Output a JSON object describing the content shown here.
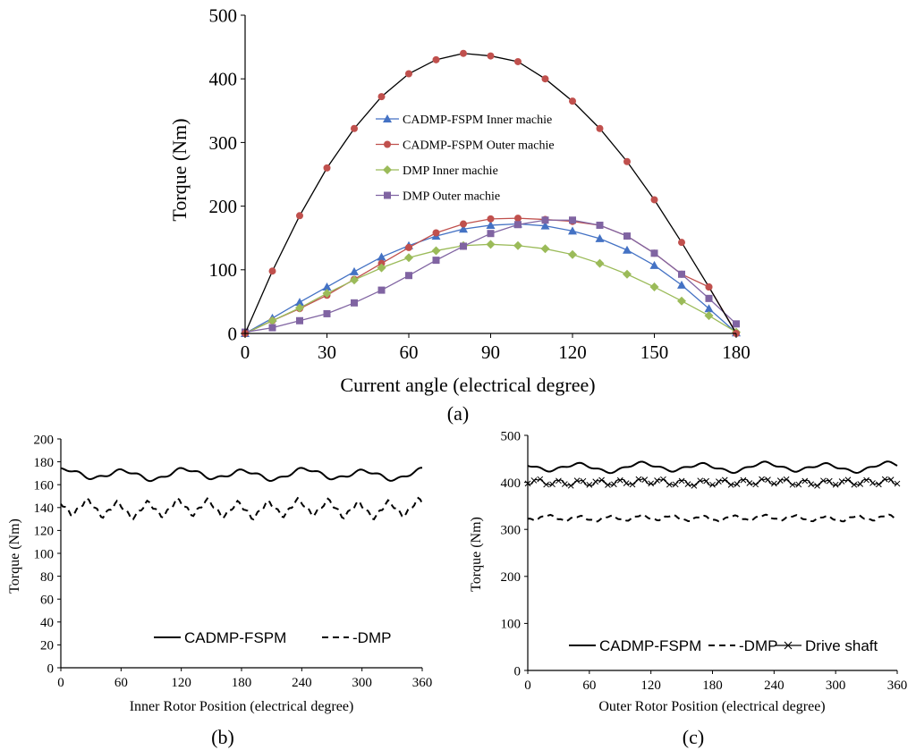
{
  "colors": {
    "axis": "#000000",
    "blue": "#4472C4",
    "red": "#C0504D",
    "green": "#9BBB59",
    "purple": "#8064A2"
  },
  "panels": {
    "a": "(a)",
    "b": "(b)",
    "c": "(c)"
  },
  "chart_data": [
    {
      "type": "line",
      "title": "",
      "xlabel": "Current angle (electrical degree)",
      "ylabel": "Torque (Nm)",
      "xlim": [
        0,
        180
      ],
      "ylim": [
        0,
        500
      ],
      "xticks": [
        0,
        30,
        60,
        90,
        120,
        150,
        180
      ],
      "yticks": [
        0,
        100,
        200,
        300,
        400,
        500
      ],
      "legend_position": "center",
      "x": [
        0,
        10,
        20,
        30,
        40,
        50,
        60,
        70,
        80,
        90,
        100,
        110,
        120,
        130,
        140,
        150,
        160,
        170,
        180
      ],
      "series": [
        {
          "name": "CADMP-FSPM Inner machie",
          "marker": "triangle",
          "color": "#4472C4",
          "values": [
            0,
            24,
            49,
            73,
            97,
            120,
            138,
            153,
            164,
            170,
            172,
            169,
            161,
            149,
            131,
            107,
            76,
            39,
            1
          ]
        },
        {
          "name": "CADMP-FSPM Outer machie",
          "marker": "circle",
          "color": "#C0504D",
          "values": [
            0,
            20,
            39,
            60,
            85,
            110,
            135,
            158,
            172,
            180,
            181,
            179,
            176,
            170,
            153,
            126,
            93,
            73,
            1
          ]
        },
        {
          "name": "DMP Inner machie",
          "marker": "diamond",
          "color": "#9BBB59",
          "values": [
            0,
            20,
            40,
            63,
            84,
            103,
            119,
            130,
            138,
            140,
            138,
            133,
            124,
            110,
            93,
            73,
            51,
            28,
            2
          ]
        },
        {
          "name": "DMP Outer machie",
          "marker": "square",
          "color": "#8064A2",
          "values": [
            2,
            9,
            20,
            31,
            48,
            68,
            91,
            115,
            137,
            157,
            171,
            178,
            178,
            170,
            153,
            126,
            93,
            55,
            15
          ]
        },
        {
          "name": "",
          "marker": "circle",
          "color": "#C0504D",
          "line_color": "#000000",
          "values": [
            0,
            98,
            185,
            260,
            322,
            372,
            408,
            430,
            440,
            436,
            427,
            400,
            365,
            322,
            270,
            210,
            143,
            73,
            0
          ]
        }
      ]
    },
    {
      "type": "line",
      "title": "",
      "xlabel": "Inner Rotor Position (electrical degree)",
      "ylabel": "Torque (Nm)",
      "xlim": [
        0,
        360
      ],
      "ylim": [
        0,
        200
      ],
      "xticks": [
        0,
        60,
        120,
        180,
        240,
        300,
        360
      ],
      "yticks": [
        0,
        20,
        40,
        60,
        80,
        100,
        120,
        140,
        160,
        180,
        200
      ],
      "legend_position": "bottom",
      "series": [
        {
          "name": "CADMP-FSPM",
          "style": "solid",
          "mean": 169,
          "amp": 4,
          "period": 60
        },
        {
          "name": "-DMP",
          "style": "dashed",
          "mean": 139,
          "amp": 6,
          "period": 30
        }
      ]
    },
    {
      "type": "line",
      "title": "",
      "xlabel": "Outer Rotor Position (electrical degree)",
      "ylabel": "Torque (Nm)",
      "xlim": [
        0,
        360
      ],
      "ylim": [
        0,
        500
      ],
      "xticks": [
        0,
        60,
        120,
        180,
        240,
        300,
        360
      ],
      "yticks": [
        0,
        100,
        200,
        300,
        400,
        500
      ],
      "legend_position": "bottom",
      "series": [
        {
          "name": "CADMP-FSPM",
          "style": "solid",
          "mean": 432,
          "amp": 8,
          "period": 60
        },
        {
          "name": "-DMP",
          "style": "dashed",
          "mean": 324,
          "amp": 5,
          "period": 30
        },
        {
          "name": "Drive shaft",
          "style": "star",
          "mean": 400,
          "amp": 6,
          "period": 20
        }
      ]
    }
  ]
}
